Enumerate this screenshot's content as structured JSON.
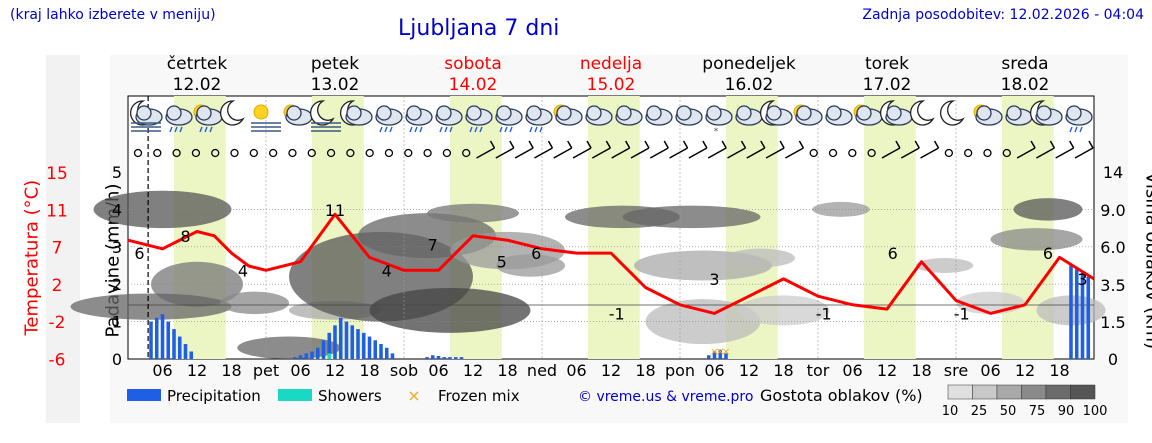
{
  "header": {
    "note": "(kraj lahko izberete v meniju)",
    "title": "Ljubljana 7 dni",
    "updated": "Zadnja posodobitev: 12.02.2026 - 04:04"
  },
  "axes": {
    "temp_label": "Temperatura (°C)",
    "precip_label": "Padavine (mm/h)",
    "cloud_height_label": "Višina oblakov (km)"
  },
  "colors": {
    "temperature": "#ff0000",
    "precipitation": "#1f5fe6",
    "showers": "#19d9c4",
    "frozen": "#f5a623",
    "daylight": "#ecf5c4",
    "weekend": "#ff0000",
    "weekday": "#000000"
  },
  "legend": {
    "precipitation": "Precipitation",
    "showers": "Showers",
    "frozen": "Frozen mix",
    "copyright": "© vreme.us & vreme.pro",
    "cloud_density": "Gostota oblakov (%)",
    "density_ticks": [
      "10",
      "25",
      "50",
      "75",
      "90",
      "100"
    ]
  },
  "chart_data": {
    "type": "line",
    "days": [
      {
        "name": "četrtek",
        "date": "12.02",
        "weekend": false
      },
      {
        "name": "petek",
        "date": "13.02",
        "weekend": false
      },
      {
        "name": "sobota",
        "date": "14.02",
        "weekend": true
      },
      {
        "name": "nedelja",
        "date": "15.02",
        "weekend": true
      },
      {
        "name": "ponedeljek",
        "date": "16.02",
        "weekend": false
      },
      {
        "name": "torek",
        "date": "17.02",
        "weekend": false
      },
      {
        "name": "sreda",
        "date": "18.02",
        "weekend": false
      }
    ],
    "day_short": [
      "pet",
      "sob",
      "ned",
      "pon",
      "tor",
      "sre"
    ],
    "hour_ticks": [
      "06",
      "12",
      "18"
    ],
    "x_range_hours": [
      0,
      168
    ],
    "temp_ticks": [
      15,
      11,
      7,
      2,
      -2,
      -6
    ],
    "precip_ticks": [
      0,
      1,
      2,
      3,
      4,
      5
    ],
    "precip_ylim": [
      0,
      5
    ],
    "cloud_height_ticks": [
      "0",
      "1.5",
      "3.5",
      "6.0",
      "9.0",
      "14"
    ],
    "temperature": {
      "name": "Temperatura",
      "x_hours": [
        0,
        6,
        12,
        15,
        18,
        21,
        24,
        30,
        36,
        42,
        48,
        54,
        60,
        66,
        72,
        78,
        84,
        90,
        96,
        102,
        108,
        114,
        120,
        126,
        132,
        138,
        144,
        150,
        156,
        162,
        168
      ],
      "values": [
        7.5,
        6.5,
        8.5,
        8.0,
        6.0,
        4.5,
        4.0,
        5.0,
        10.5,
        5.5,
        4.0,
        4.0,
        8.0,
        7.5,
        6.5,
        6.0,
        6.0,
        2.0,
        0,
        -1,
        1,
        3,
        1,
        0,
        -0.5,
        5,
        0.5,
        -1,
        0,
        5.5,
        3
      ]
    },
    "temp_labels": [
      {
        "x_hours": 2,
        "value": 6,
        "text": "6"
      },
      {
        "x_hours": 10,
        "value": 8,
        "text": "8"
      },
      {
        "x_hours": 20,
        "value": 4,
        "text": "4"
      },
      {
        "x_hours": 36,
        "value": 11,
        "text": "11"
      },
      {
        "x_hours": 45,
        "value": 4,
        "text": "4"
      },
      {
        "x_hours": 53,
        "value": 7,
        "text": "7"
      },
      {
        "x_hours": 65,
        "value": 5,
        "text": "5"
      },
      {
        "x_hours": 71,
        "value": 6,
        "text": "6"
      },
      {
        "x_hours": 85,
        "value": -1,
        "text": "-1"
      },
      {
        "x_hours": 102,
        "value": 3,
        "text": "3"
      },
      {
        "x_hours": 121,
        "value": -1,
        "text": "-1"
      },
      {
        "x_hours": 133,
        "value": 6,
        "text": "6"
      },
      {
        "x_hours": 145,
        "value": -1,
        "text": "-1"
      },
      {
        "x_hours": 160,
        "value": 6,
        "text": "6"
      },
      {
        "x_hours": 166,
        "value": 3,
        "text": "3"
      }
    ],
    "precipitation": {
      "name": "Precipitation",
      "x_hours": [
        4,
        5,
        6,
        7,
        8,
        9,
        10,
        11,
        29,
        30,
        31,
        32,
        33,
        34,
        35,
        36,
        37,
        38,
        39,
        40,
        41,
        42,
        43,
        44,
        45,
        46,
        52,
        53,
        54,
        55,
        56,
        57,
        58,
        101,
        102,
        103,
        104,
        164,
        165,
        166,
        167
      ],
      "values": [
        1.0,
        1.1,
        1.2,
        1.0,
        0.8,
        0.6,
        0.4,
        0.2,
        0.05,
        0.1,
        0.15,
        0.2,
        0.3,
        0.5,
        0.7,
        0.9,
        1.1,
        1.0,
        0.9,
        0.8,
        0.7,
        0.6,
        0.5,
        0.4,
        0.3,
        0.15,
        0.05,
        0.1,
        0.08,
        0.05,
        0.05,
        0.05,
        0.05,
        0.1,
        0.2,
        0.25,
        0.15,
        2.5,
        2.4,
        2.3,
        2.2
      ]
    },
    "showers": {
      "name": "Showers",
      "x_hours": [
        35
      ],
      "values": [
        0.15
      ]
    },
    "frozen": {
      "name": "Frozen mix",
      "x_hours": [
        102,
        103,
        104
      ],
      "values": [
        0.2,
        0.2,
        0.2
      ]
    },
    "wind_marks": [
      "calm",
      "calm",
      "calm",
      "calm",
      "calm",
      "calm",
      "calm",
      "calm",
      "calm",
      "calm",
      "calm",
      "calm",
      "calm",
      "calm",
      "calm",
      "calm",
      "calm",
      "calm",
      "wind",
      "wind",
      "wind",
      "wind",
      "wind",
      "wind",
      "wind",
      "wind",
      "wind",
      "wind",
      "wind",
      "wind",
      "wind",
      "wind",
      "wind",
      "wind",
      "wind",
      "calm",
      "calm",
      "calm",
      "calm",
      "wind",
      "wind",
      "wind",
      "calm",
      "calm",
      "calm",
      "calm",
      "wind",
      "wind",
      "wind",
      "wind"
    ],
    "cloud_density_legend": [
      "10",
      "25",
      "50",
      "75",
      "90",
      "100"
    ]
  },
  "icons": [
    "moon-cloud-fog",
    "cloud-rain",
    "sun-cloud-rain",
    "moon",
    "sun-fog",
    "sun-cloud",
    "moon-fog",
    "moon-cloud",
    "cloud-rain",
    "cloud-heavy-rain",
    "cloud-rain",
    "cloud-rain",
    "cloud-rain",
    "cloud-rain",
    "sun-cloud",
    "cloud",
    "cloud",
    "cloud",
    "cloud",
    "cloud-snow",
    "cloud",
    "moon-cloud",
    "sun-cloud",
    "cloud",
    "sun-cloud",
    "moon-cloud",
    "moon",
    "moon",
    "sun-cloud",
    "cloud",
    "moon-cloud",
    "cloud-rain"
  ]
}
